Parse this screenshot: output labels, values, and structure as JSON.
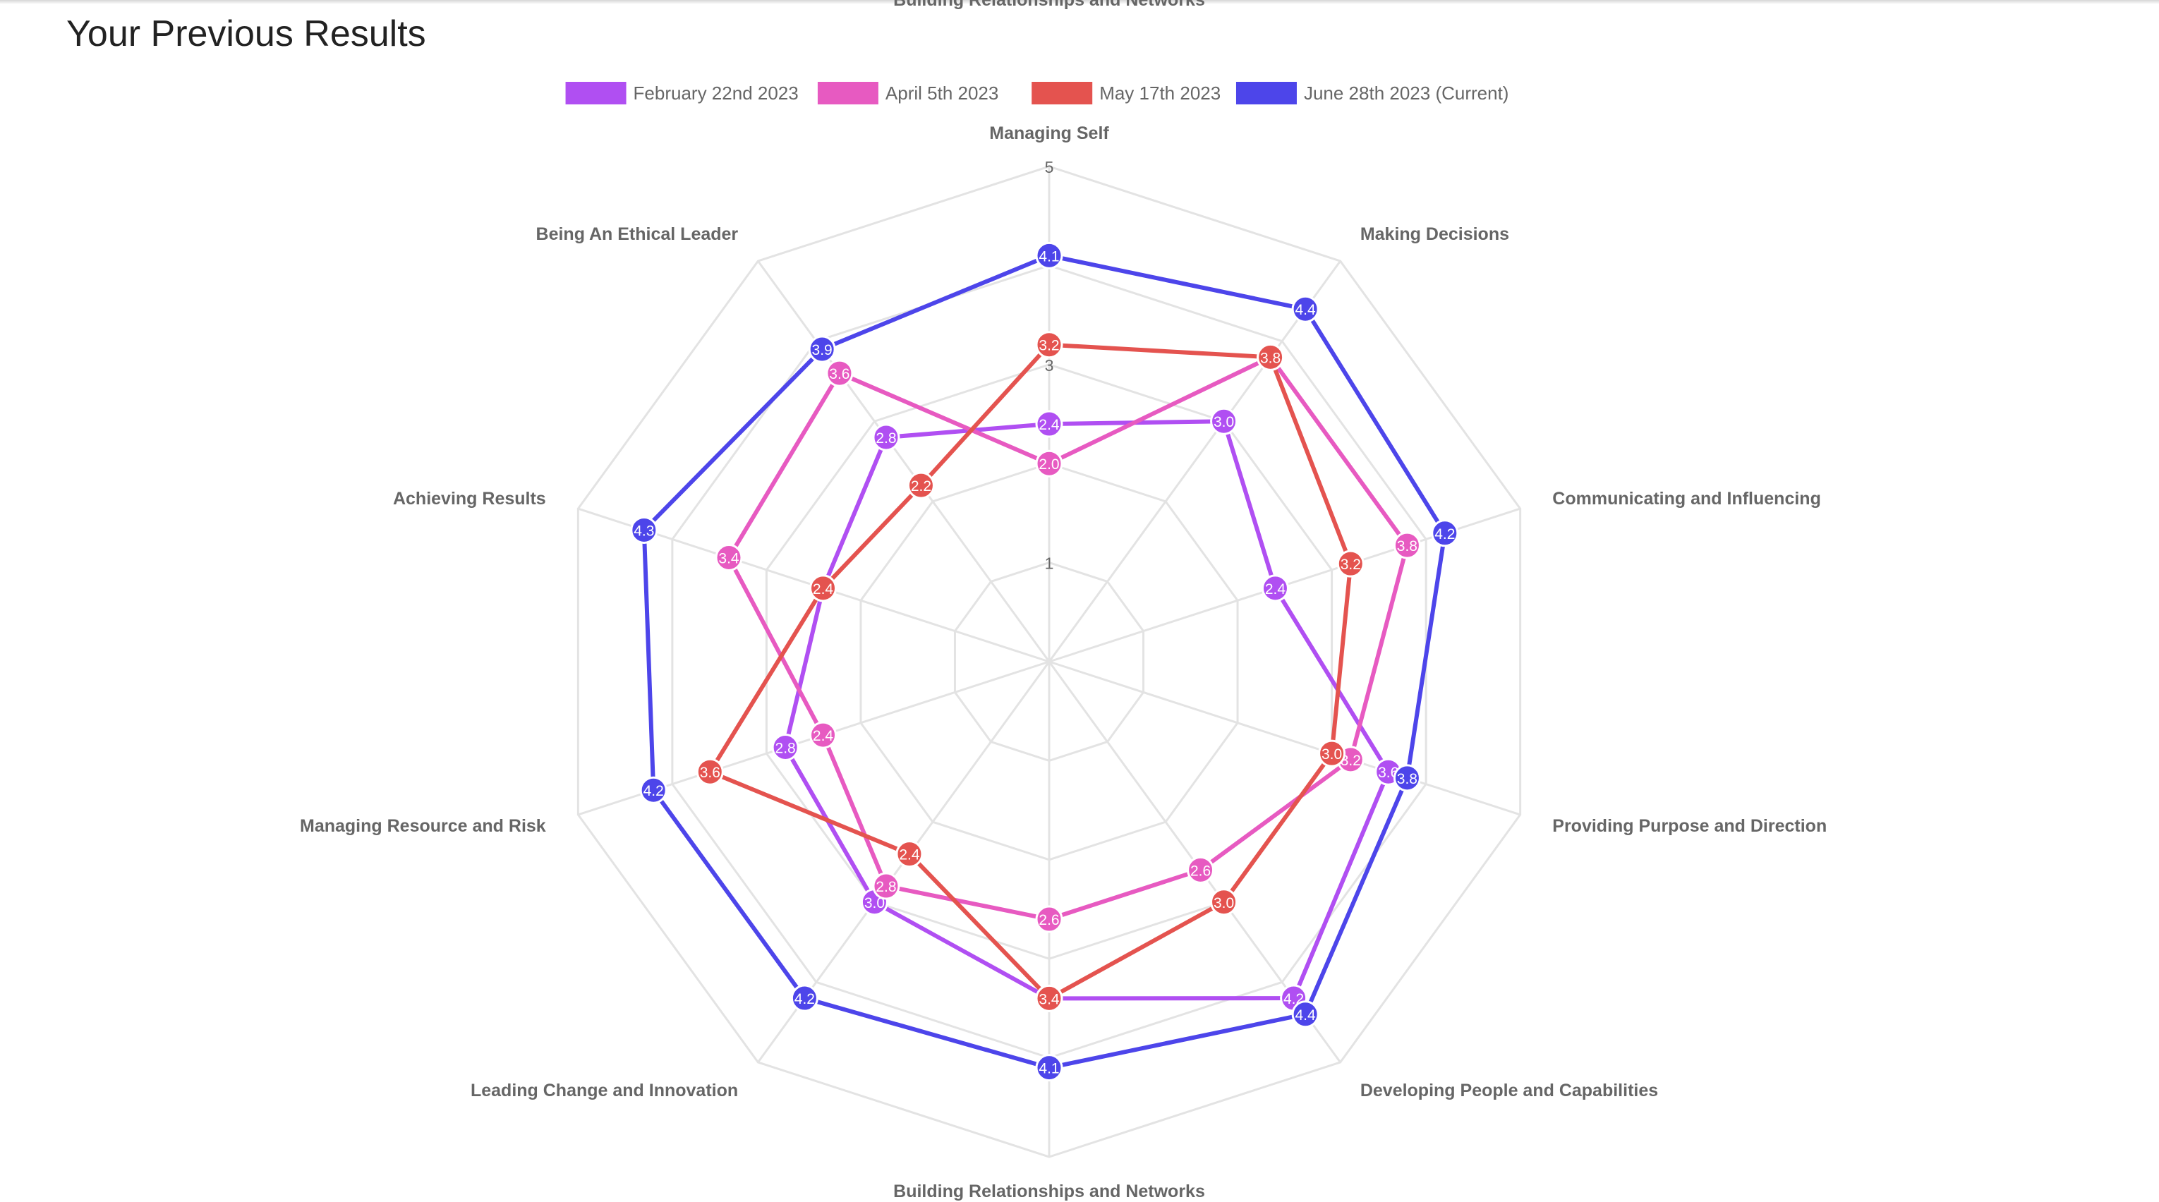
{
  "page": {
    "title": "Your Previous Results",
    "clipped_label": "Building Relationships and Networks"
  },
  "colors": {
    "grid": "#e3e3e3",
    "point_label_text": "#666666",
    "tick_text": "#666666",
    "legend_text": "#666666",
    "data_label_text": "#ffffff"
  },
  "chart_data": {
    "type": "radar",
    "title": "",
    "r_min": 0,
    "r_max": 5,
    "ticks": [
      {
        "value": 1,
        "label": "1"
      },
      {
        "value": 3,
        "label": "3"
      },
      {
        "value": 5,
        "label": "5"
      }
    ],
    "grid": true,
    "legend_position": "top",
    "axes": [
      "Managing Self",
      "Making Decisions",
      "Communicating and Influencing",
      "Providing Purpose and Direction",
      "Developing People and Capabilities",
      "Building Relationships and Networks",
      "Leading Change and Innovation",
      "Managing Resource and Risk",
      "Achieving Results",
      "Being An Ethical Leader"
    ],
    "series": [
      {
        "name": "February 22nd 2023",
        "color": "#b04ff2",
        "values": [
          2.4,
          3.0,
          2.4,
          3.6,
          4.2,
          3.4,
          3.0,
          2.8,
          2.4,
          2.8
        ],
        "labels": [
          "2.4",
          "3.0",
          "2.4",
          "3.6",
          "4.2",
          "3.4",
          "3.0",
          "2.8",
          "2.4",
          "2.8"
        ]
      },
      {
        "name": "April 5th 2023",
        "color": "#e75ac1",
        "values": [
          2.0,
          3.8,
          3.8,
          3.2,
          2.6,
          2.6,
          2.8,
          2.4,
          3.4,
          3.6
        ],
        "labels": [
          "2.0",
          "3.8",
          "3.8",
          "3.2",
          "2.6",
          "2.6",
          "2.8",
          "2.4",
          "3.4",
          "3.6"
        ]
      },
      {
        "name": "May 17th 2023",
        "color": "#e4534f",
        "values": [
          3.2,
          3.8,
          3.2,
          3.0,
          3.0,
          3.4,
          2.4,
          3.6,
          2.4,
          2.2
        ],
        "labels": [
          "3.2",
          "3.8",
          "3.2",
          "3.0",
          "3.0",
          "3.4",
          "2.4",
          "3.6",
          "2.4",
          "2.2"
        ]
      },
      {
        "name": "June 28th 2023 (Current)",
        "color": "#4d45ea",
        "values": [
          4.1,
          4.4,
          4.2,
          3.8,
          4.4,
          4.1,
          4.2,
          4.2,
          4.3,
          3.9
        ],
        "labels": [
          "4.1",
          "4.4",
          "4.2",
          "3.8",
          "4.4",
          "4.1",
          "4.2",
          "4.2",
          "4.3",
          "3.9"
        ]
      }
    ]
  }
}
